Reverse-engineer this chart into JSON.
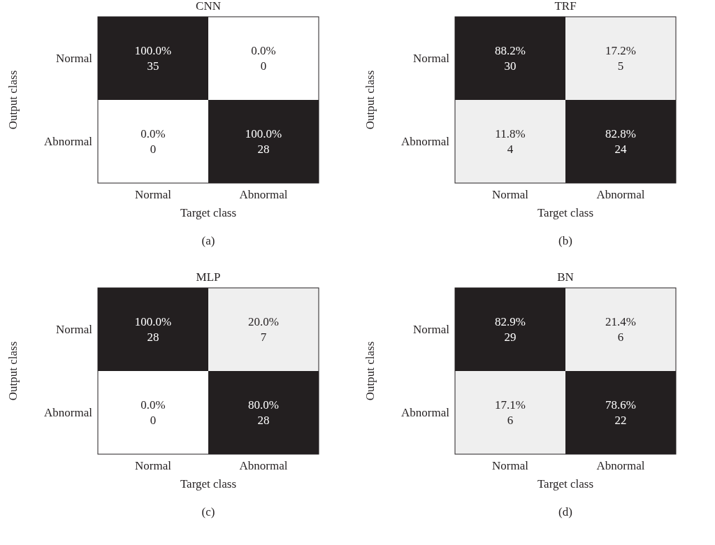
{
  "chart_data": [
    {
      "type": "heatmap",
      "title": "CNN",
      "xlabel": "Target class",
      "ylabel": "Output class",
      "categories": [
        "Normal",
        "Abnormal"
      ],
      "y_categories": [
        "Normal",
        "Abnormal"
      ],
      "cells": [
        [
          100.0,
          0.0
        ],
        [
          0.0,
          100.0
        ]
      ],
      "cell_labels": [
        [
          "100.0%",
          "0.0%"
        ],
        [
          "0.0%",
          "100.0%"
        ]
      ],
      "annotations": [
        "35",
        "0",
        "0",
        "28",
        "(a)"
      ]
    },
    {
      "type": "heatmap",
      "title": "TRF",
      "xlabel": "Target class",
      "ylabel": "Output class",
      "categories": [
        "Normal",
        "Abnormal"
      ],
      "y_categories": [
        "Normal",
        "Abnormal"
      ],
      "cells": [
        [
          88.2,
          17.2
        ],
        [
          11.8,
          82.8
        ]
      ],
      "cell_labels": [
        [
          "88.2%",
          "17.2%"
        ],
        [
          "11.8%",
          "82.8%"
        ]
      ],
      "annotations": [
        "30",
        "5",
        "4",
        "24",
        "(b)"
      ]
    },
    {
      "type": "heatmap",
      "title": "MLP",
      "xlabel": "Target class",
      "ylabel": "Output class",
      "categories": [
        "Normal",
        "Abnormal"
      ],
      "y_categories": [
        "Normal",
        "Abnormal"
      ],
      "cells": [
        [
          100.0,
          20.0
        ],
        [
          0.0,
          80.0
        ]
      ],
      "cell_labels": [
        [
          "100.0%",
          "20.0%"
        ],
        [
          "0.0%",
          "80.0%"
        ]
      ],
      "annotations": [
        "28",
        "7",
        "0",
        "28",
        "(c)"
      ]
    },
    {
      "type": "heatmap",
      "title": "BN",
      "xlabel": "Target class",
      "ylabel": "Output class",
      "categories": [
        "Normal",
        "Abnormal"
      ],
      "y_categories": [
        "Normal",
        "Abnormal"
      ],
      "cells": [
        [
          82.9,
          21.4
        ],
        [
          17.1,
          78.6
        ]
      ],
      "cell_labels": [
        [
          "82.9%",
          "21.4%"
        ],
        [
          "17.1%",
          "78.6%"
        ]
      ],
      "annotations": [
        "29",
        "6",
        "6",
        "22",
        "(d)"
      ]
    }
  ]
}
